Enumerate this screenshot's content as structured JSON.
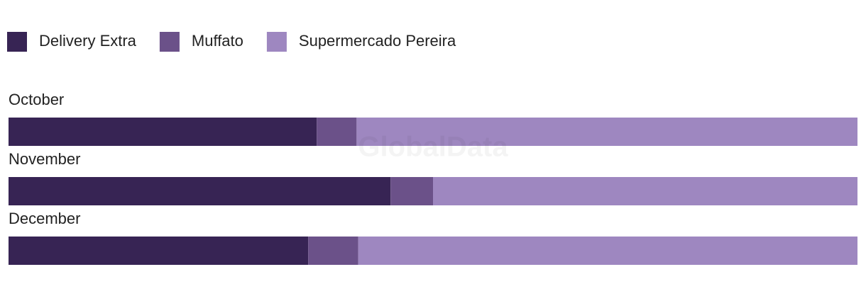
{
  "chart_data": {
    "type": "stacked-bar-100",
    "watermark": "GlobalData",
    "categories": [
      "October",
      "November",
      "December"
    ],
    "series": [
      {
        "name": "Delivery Extra",
        "color": "#372454",
        "values": [
          36.3,
          45.0,
          35.3
        ]
      },
      {
        "name": "Muffato",
        "color": "#6b5189",
        "values": [
          4.7,
          5.0,
          5.9
        ]
      },
      {
        "name": "Supermercado Pereira",
        "color": "#9e87c0",
        "values": [
          59.0,
          50.0,
          58.8
        ]
      }
    ],
    "legend": "top-left"
  }
}
